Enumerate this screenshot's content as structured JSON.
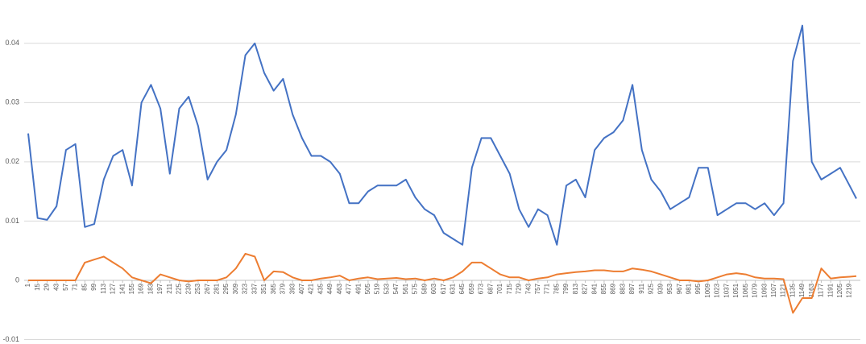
{
  "chart_data": {
    "type": "line",
    "x": [
      1,
      15,
      29,
      43,
      57,
      71,
      85,
      99,
      113,
      127,
      141,
      155,
      169,
      183,
      197,
      211,
      225,
      239,
      253,
      267,
      281,
      295,
      309,
      323,
      337,
      351,
      365,
      379,
      393,
      407,
      421,
      435,
      449,
      463,
      477,
      491,
      505,
      519,
      533,
      547,
      561,
      575,
      589,
      603,
      617,
      631,
      645,
      659,
      673,
      687,
      701,
      715,
      729,
      743,
      757,
      771,
      785,
      799,
      813,
      827,
      841,
      855,
      869,
      883,
      897,
      911,
      925,
      939,
      953,
      967,
      981,
      995,
      1009,
      1023,
      1037,
      1051,
      1065,
      1079,
      1093,
      1107,
      1121,
      1135,
      1149,
      1163,
      1177,
      1191,
      1205,
      1219,
      1229
    ],
    "series": [
      {
        "color": "#4472c4",
        "values": [
          0.0248,
          0.0105,
          0.0102,
          0.0125,
          0.022,
          0.023,
          0.009,
          0.0095,
          0.017,
          0.021,
          0.022,
          0.016,
          0.03,
          0.033,
          0.029,
          0.018,
          0.029,
          0.031,
          0.026,
          0.017,
          0.02,
          0.022,
          0.028,
          0.038,
          0.04,
          0.035,
          0.032,
          0.034,
          0.028,
          0.024,
          0.021,
          0.021,
          0.02,
          0.018,
          0.013,
          0.013,
          0.015,
          0.016,
          0.016,
          0.016,
          0.017,
          0.014,
          0.012,
          0.011,
          0.008,
          0.007,
          0.006,
          0.019,
          0.024,
          0.024,
          0.021,
          0.018,
          0.012,
          0.009,
          0.012,
          0.011,
          0.006,
          0.016,
          0.017,
          0.014,
          0.022,
          0.024,
          0.025,
          0.027,
          0.033,
          0.022,
          0.017,
          0.015,
          0.012,
          0.013,
          0.014,
          0.019,
          0.019,
          0.011,
          0.012,
          0.013,
          0.013,
          0.012,
          0.013,
          0.011,
          0.013,
          0.037,
          0.043,
          0.02,
          0.017,
          0.018,
          0.019,
          0.016,
          0.0138
        ]
      },
      {
        "color": "#ed7d31",
        "values": [
          0,
          0,
          0,
          0,
          0,
          0,
          0.003,
          0.0035,
          0.004,
          0.003,
          0.002,
          0.0005,
          0,
          -0.0005,
          0.001,
          0.0005,
          0,
          -0.0002,
          0,
          0,
          0,
          0.0005,
          0.002,
          0.0045,
          0.004,
          0,
          0.0015,
          0.0014,
          0.0005,
          0,
          0,
          0.0003,
          0.0005,
          0.0008,
          0,
          0.0003,
          0.0005,
          0.0002,
          0.0003,
          0.0004,
          0.0002,
          0.0003,
          0,
          0.0003,
          0,
          0.0005,
          0.0015,
          0.003,
          0.003,
          0.002,
          0.001,
          0.0005,
          0.0005,
          0,
          0.0003,
          0.0005,
          0.001,
          0.0012,
          0.0014,
          0.0015,
          0.0017,
          0.0017,
          0.0015,
          0.0015,
          0.002,
          0.0018,
          0.0015,
          0.001,
          0.0005,
          0,
          0,
          -0.0002,
          0,
          0.0005,
          0.001,
          0.0012,
          0.001,
          0.0005,
          0.0003,
          0.0003,
          0.0002,
          -0.0055,
          -0.003,
          -0.003,
          0.002,
          0.0003,
          0.0005,
          0.0006,
          0.0007
        ]
      }
    ],
    "xlim": [
      1,
      1229
    ],
    "xticks": [
      1,
      15,
      29,
      43,
      57,
      71,
      85,
      99,
      113,
      127,
      141,
      155,
      169,
      183,
      197,
      211,
      225,
      239,
      253,
      267,
      281,
      295,
      309,
      323,
      337,
      351,
      365,
      379,
      393,
      407,
      421,
      435,
      449,
      463,
      477,
      491,
      505,
      519,
      533,
      547,
      561,
      575,
      589,
      603,
      617,
      631,
      645,
      659,
      673,
      687,
      701,
      715,
      729,
      743,
      757,
      771,
      785,
      799,
      813,
      827,
      841,
      855,
      869,
      883,
      897,
      911,
      925,
      939,
      953,
      967,
      981,
      995,
      1009,
      1023,
      1037,
      1051,
      1065,
      1079,
      1093,
      1107,
      1121,
      1135,
      1149,
      1163,
      1177,
      1191,
      1205,
      1219
    ],
    "ylim": [
      -0.01,
      0.045
    ],
    "yticks": [
      -0.01,
      0,
      0.01,
      0.02,
      0.03,
      0.04
    ],
    "grid": true
  }
}
